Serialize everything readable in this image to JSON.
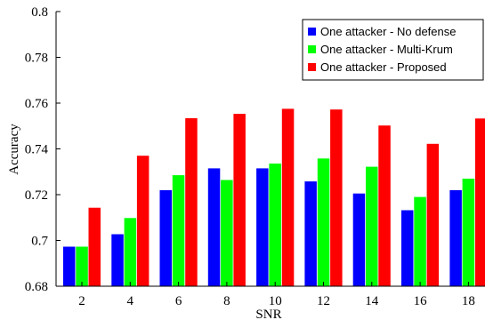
{
  "chart_data": {
    "type": "bar",
    "title": "",
    "xlabel": "SNR",
    "ylabel": "Accuracy",
    "ylim": [
      0.68,
      0.8
    ],
    "yticks": [
      "0.68",
      "0.7",
      "0.72",
      "0.74",
      "0.76",
      "0.78",
      "0.8"
    ],
    "categories": [
      "2",
      "4",
      "6",
      "8",
      "10",
      "12",
      "14",
      "16",
      "18"
    ],
    "series": [
      {
        "name": "One attacker - No defense",
        "color": "#0000ff",
        "values": [
          0.6973,
          0.7027,
          0.722,
          0.7315,
          0.7315,
          0.7258,
          0.7205,
          0.7132,
          0.722
        ]
      },
      {
        "name": "One attacker - Multi-Krum",
        "color": "#00ff00",
        "values": [
          0.6973,
          0.7098,
          0.7285,
          0.7264,
          0.7336,
          0.7358,
          0.7322,
          0.719,
          0.727
        ]
      },
      {
        "name": "One attacker - Proposed",
        "color": "#ff0000",
        "values": [
          0.7143,
          0.737,
          0.7534,
          0.7553,
          0.7575,
          0.7572,
          0.7502,
          0.7422,
          0.7533
        ]
      }
    ],
    "grid": false,
    "legend_position": "top-right"
  }
}
